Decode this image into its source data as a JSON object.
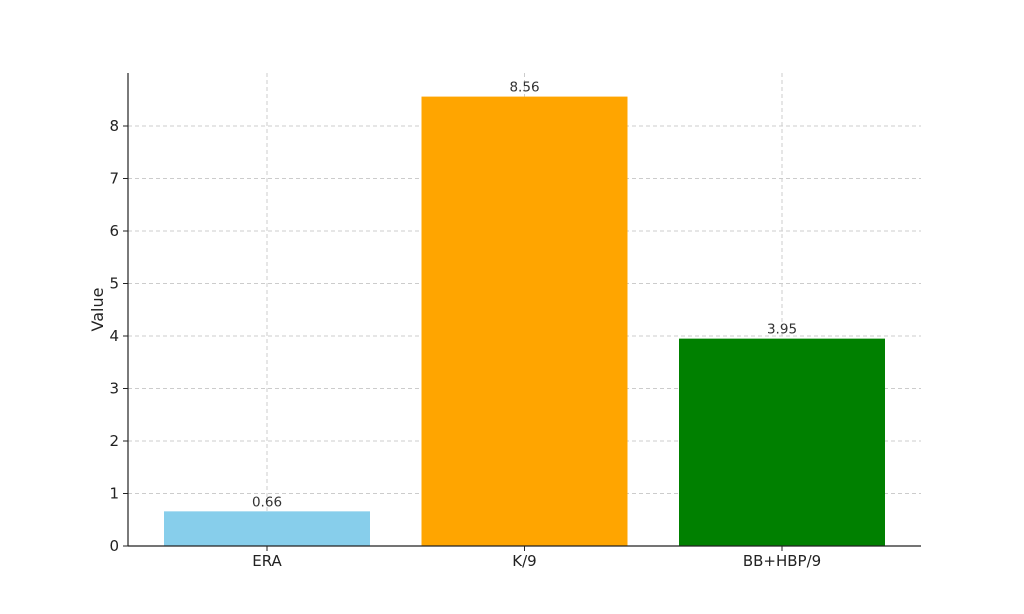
{
  "chart_data": {
    "type": "bar",
    "title": "",
    "xlabel": "",
    "ylabel": "Value",
    "categories": [
      "ERA",
      "K/9",
      "BB+HBP/9"
    ],
    "values": [
      0.66,
      8.56,
      3.95
    ],
    "value_labels": [
      "0.66",
      "8.56",
      "3.95"
    ],
    "colors": [
      "#87ceeb",
      "#ffa500",
      "#008000"
    ],
    "ylim": [
      0,
      9
    ],
    "yticks": [
      0,
      1,
      2,
      3,
      4,
      5,
      6,
      7,
      8
    ],
    "grid": true,
    "legend": "none"
  }
}
